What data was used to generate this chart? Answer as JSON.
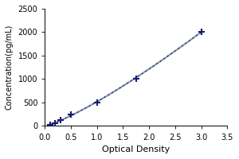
{
  "x_data": [
    0.1,
    0.2,
    0.3,
    0.5,
    1.0,
    1.75,
    3.0
  ],
  "y_data": [
    31,
    62,
    125,
    250,
    500,
    1000,
    2000
  ],
  "xlabel": "Optical Density",
  "ylabel": "Concentration(pg/mL)",
  "xlim": [
    0,
    3.5
  ],
  "ylim": [
    0,
    2500
  ],
  "xticks": [
    0,
    0.5,
    1.0,
    1.5,
    2.0,
    2.5,
    3.0,
    3.5
  ],
  "yticks": [
    0,
    500,
    1000,
    1500,
    2000,
    2500
  ],
  "marker_color": "#1a1a6e",
  "line_color": "#8090b8",
  "dot_line_color": "#222222",
  "background_color": "#ffffff"
}
